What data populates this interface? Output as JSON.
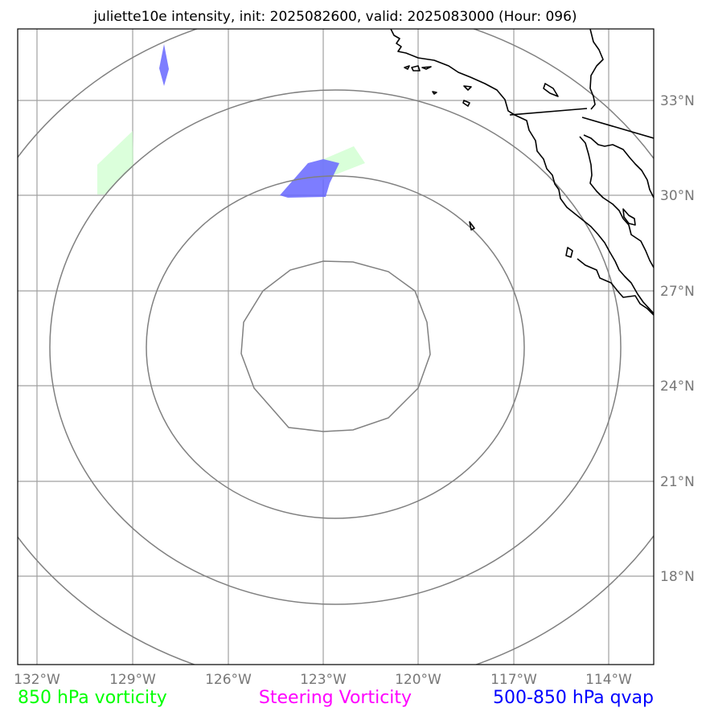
{
  "title": "juliette10e intensity, init: 2025082600, valid: 2025083000 (Hour: 096)",
  "axes": {
    "lon_ticks": [
      "132°W",
      "129°W",
      "126°W",
      "123°W",
      "120°W",
      "117°W",
      "114°W"
    ],
    "lat_ticks": [
      "33°N",
      "30°N",
      "27°N",
      "24°N",
      "21°N",
      "18°N"
    ]
  },
  "legend": [
    {
      "label": "850 hPa vorticity",
      "color": "#00ff00"
    },
    {
      "label": "Steering Vorticity",
      "color": "#ff00ff"
    },
    {
      "label": "500-850 hPa qvap",
      "color": "#0000ff"
    }
  ],
  "colors": {
    "grid": "#a0a0a0",
    "range_rings": "#808080",
    "coastline": "#000000",
    "vorticity_fill": "#ccffcc",
    "qvap_fill": "#6666ff"
  }
}
